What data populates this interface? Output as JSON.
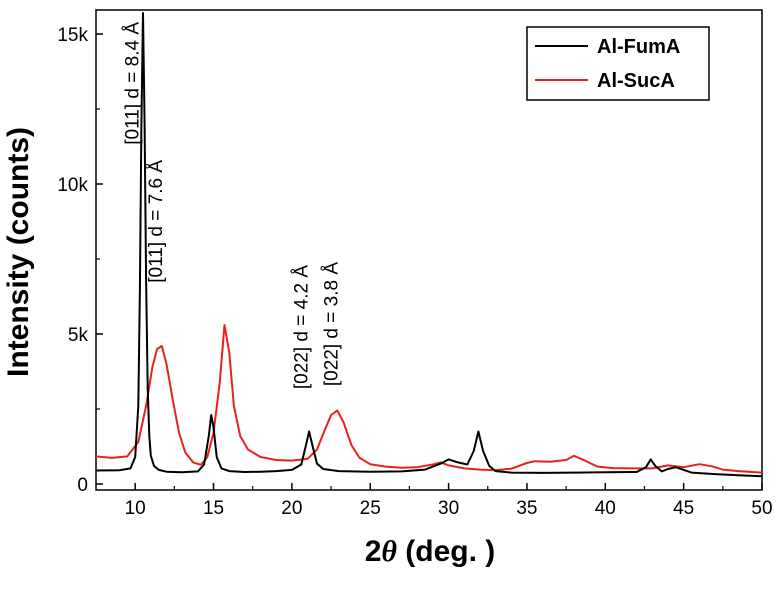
{
  "chart_data": {
    "type": "line",
    "xlabel_prefix": "2",
    "xlabel_symbol": "θ",
    "xlabel_suffix": " (deg. )",
    "ylabel": "Intensity (counts)",
    "xlim": [
      7.5,
      50
    ],
    "ylim": [
      -200,
      15800
    ],
    "xticks": [
      10,
      15,
      20,
      25,
      30,
      35,
      40,
      45,
      50
    ],
    "xtick_labels": [
      "10",
      "15",
      "20",
      "25",
      "30",
      "35",
      "40",
      "45",
      "50"
    ],
    "yticks": [
      0,
      5000,
      10000,
      15000
    ],
    "ytick_labels": [
      "0",
      "5k",
      "10k",
      "15k"
    ],
    "grid": false,
    "legend_position": "top-right",
    "series": [
      {
        "name": "Al-FumA",
        "color": "#000000",
        "x": [
          7.5,
          9.0,
          9.7,
          10.0,
          10.2,
          10.3,
          10.4,
          10.5,
          10.6,
          10.7,
          10.8,
          10.9,
          11.0,
          11.2,
          11.5,
          12.0,
          13.0,
          14.0,
          14.4,
          14.7,
          14.85,
          15.0,
          15.2,
          15.5,
          16.0,
          17.0,
          18.0,
          19.0,
          20.0,
          20.6,
          20.9,
          21.1,
          21.3,
          21.6,
          22.0,
          23.0,
          25.0,
          27.0,
          28.5,
          29.5,
          30.0,
          30.6,
          31.2,
          31.6,
          31.9,
          32.2,
          32.6,
          33.0,
          34.0,
          36.0,
          38.0,
          40.0,
          42.0,
          42.6,
          42.9,
          43.2,
          43.6,
          44.0,
          44.5,
          45.5,
          47.0,
          48.5,
          50.0
        ],
        "y": [
          450,
          460,
          520,
          900,
          2600,
          6500,
          12000,
          15700,
          12000,
          6800,
          3200,
          1600,
          950,
          600,
          470,
          410,
          390,
          420,
          650,
          1600,
          2300,
          1900,
          900,
          520,
          430,
          400,
          410,
          430,
          470,
          650,
          1300,
          1750,
          1300,
          680,
          500,
          430,
          410,
          420,
          480,
          680,
          820,
          720,
          650,
          1100,
          1750,
          1100,
          600,
          430,
          380,
          370,
          380,
          390,
          400,
          560,
          820,
          600,
          420,
          500,
          560,
          380,
          330,
          290,
          260
        ]
      },
      {
        "name": "Al-SucA",
        "color": "#e8211e",
        "x": [
          7.5,
          8.5,
          9.5,
          10.2,
          10.7,
          11.1,
          11.4,
          11.7,
          12.0,
          12.4,
          12.8,
          13.2,
          13.7,
          14.2,
          14.6,
          15.0,
          15.4,
          15.7,
          16.0,
          16.3,
          16.7,
          17.2,
          18.0,
          19.0,
          20.0,
          21.0,
          21.6,
          22.1,
          22.5,
          22.9,
          23.3,
          23.8,
          24.3,
          25.0,
          26.0,
          27.0,
          28.0,
          29.0,
          29.5,
          30.0,
          31.0,
          32.0,
          33.0,
          34.0,
          35.0,
          35.5,
          36.5,
          37.5,
          38.0,
          38.7,
          39.5,
          40.5,
          41.5,
          43.0,
          44.0,
          45.0,
          46.0,
          46.8,
          47.5,
          48.5,
          50.0
        ],
        "y": [
          920,
          870,
          920,
          1400,
          2600,
          3900,
          4500,
          4600,
          4000,
          2800,
          1700,
          1050,
          720,
          640,
          900,
          1700,
          3400,
          5300,
          4400,
          2600,
          1600,
          1150,
          900,
          800,
          780,
          840,
          1150,
          1800,
          2300,
          2450,
          2050,
          1300,
          880,
          660,
          580,
          540,
          560,
          650,
          720,
          620,
          520,
          480,
          460,
          510,
          700,
          760,
          740,
          800,
          940,
          780,
          580,
          530,
          520,
          520,
          620,
          560,
          660,
          590,
          480,
          430,
          380
        ]
      }
    ],
    "annotations": [
      {
        "text": "[011] d = 8.4 Å",
        "x": 10.2,
        "y": 15400
      },
      {
        "text": "[011] d = 7.6 Å",
        "x": 11.7,
        "y": 10800
      },
      {
        "text": "[022] d = 4.2 Å",
        "x": 21.0,
        "y": 7300
      },
      {
        "text": "[022] d = 3.8 Å",
        "x": 22.9,
        "y": 7400
      }
    ]
  }
}
